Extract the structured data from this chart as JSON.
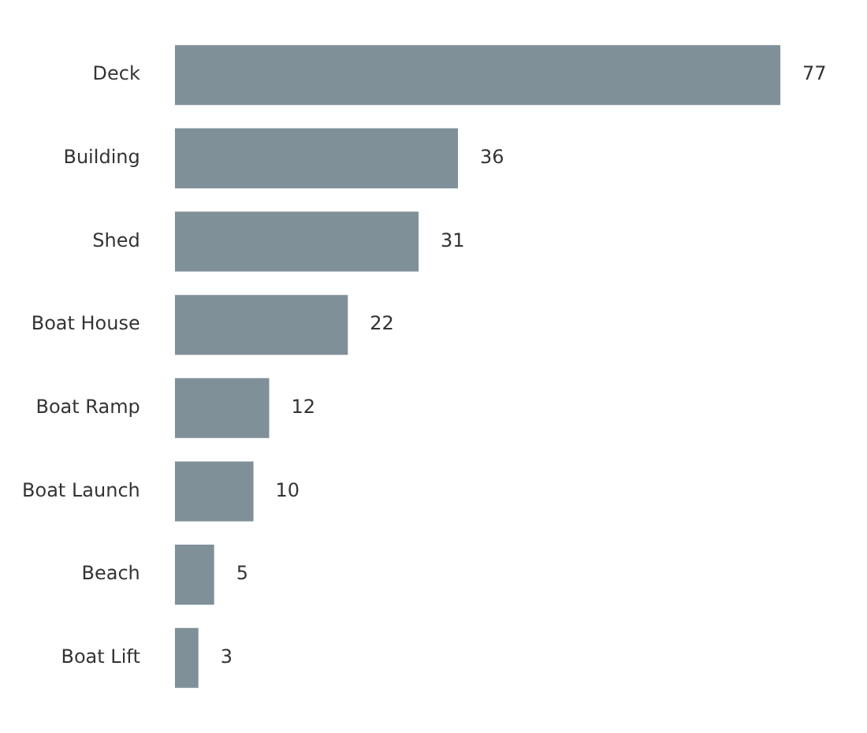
{
  "chart_data": {
    "type": "bar",
    "orientation": "horizontal",
    "categories": [
      "Deck",
      "Building",
      "Shed",
      "Boat House",
      "Boat Ramp",
      "Boat Launch",
      "Beach",
      "Boat Lift"
    ],
    "values": [
      77,
      36,
      31,
      22,
      12,
      10,
      5,
      3
    ],
    "color": "#7f9099",
    "data_labels": true
  }
}
